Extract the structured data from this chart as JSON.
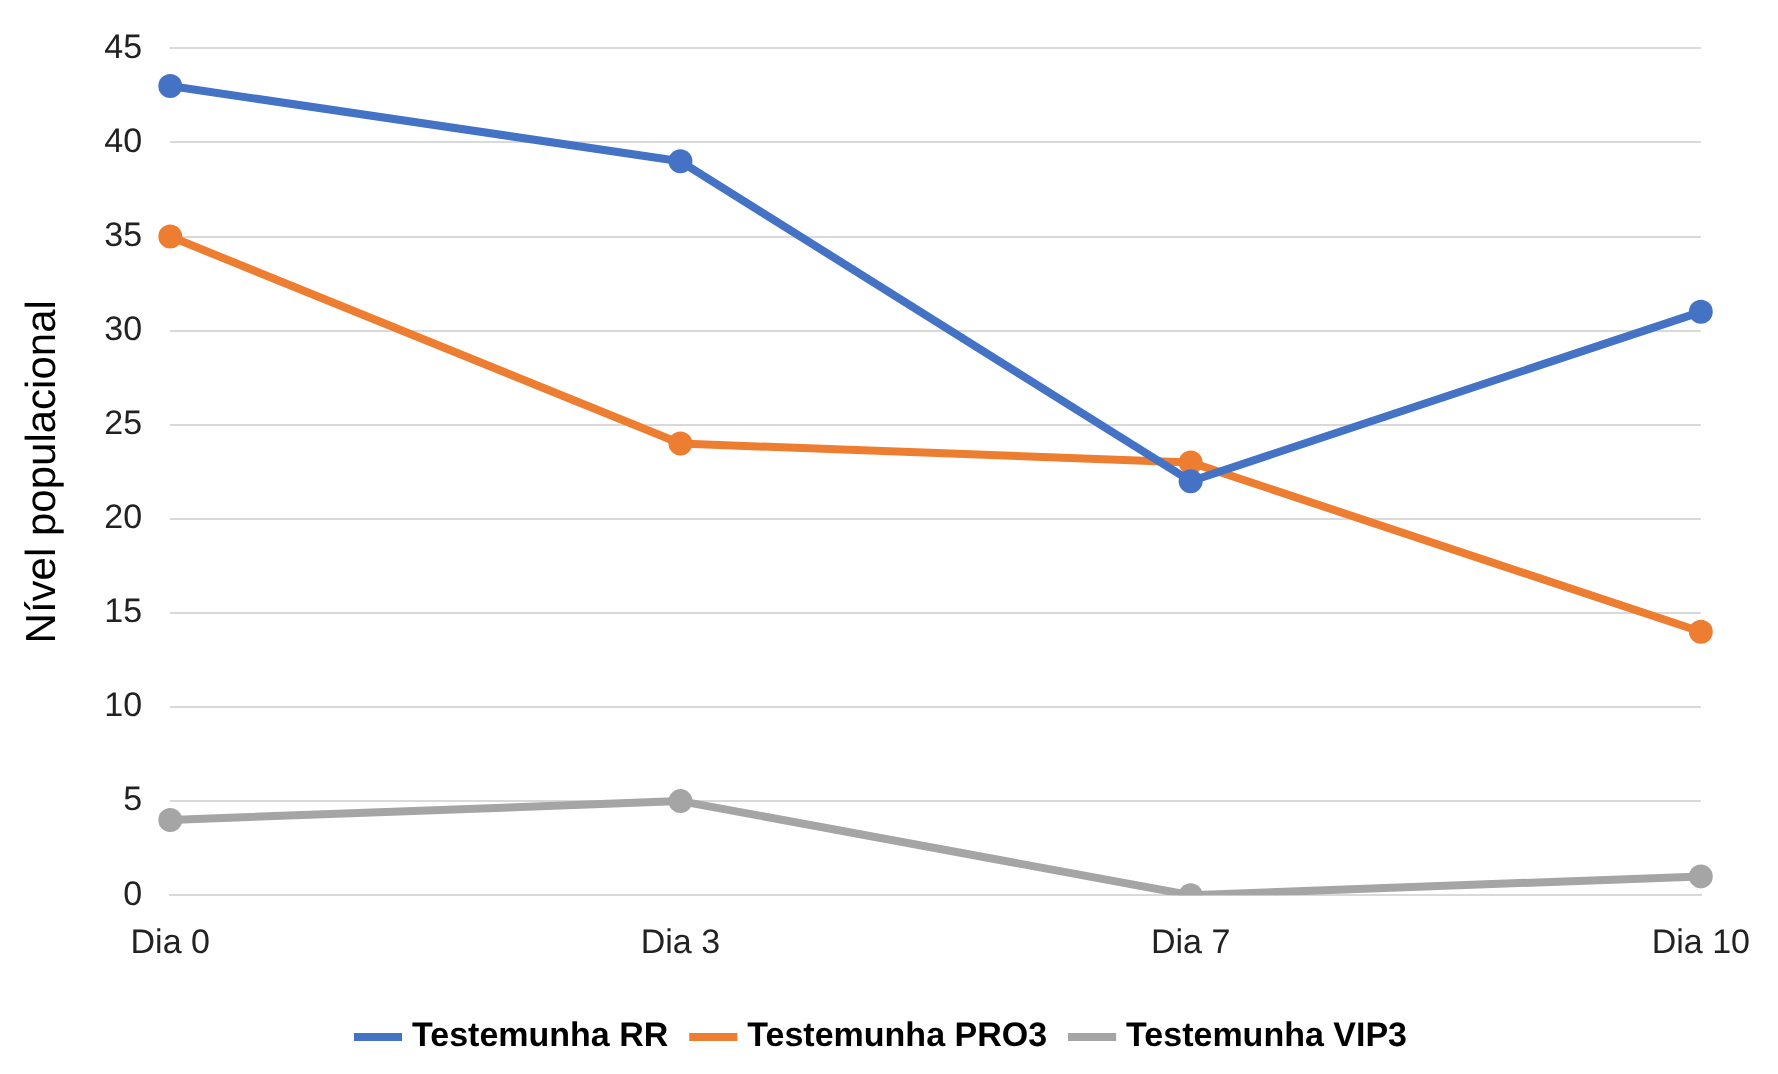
{
  "chart_data": {
    "type": "line",
    "ylabel": "Nível populacional",
    "categories": [
      "Dia 0",
      "Dia 3",
      "Dia 7",
      "Dia 10"
    ],
    "series": [
      {
        "name": "Testemunha RR",
        "color": "#4472c4",
        "values": [
          43,
          39,
          22,
          31
        ]
      },
      {
        "name": "Testemunha PRO3",
        "color": "#ed7d31",
        "values": [
          35,
          24,
          23,
          14
        ]
      },
      {
        "name": "Testemunha VIP3",
        "color": "#a5a5a5",
        "values": [
          4,
          5,
          0,
          1
        ]
      }
    ],
    "ylim": [
      0,
      45
    ],
    "yticks": [
      0,
      5,
      10,
      15,
      20,
      25,
      30,
      35,
      40,
      45
    ],
    "grid": "y",
    "legend": "bottom",
    "marker": "circle",
    "line_style": "solid"
  }
}
